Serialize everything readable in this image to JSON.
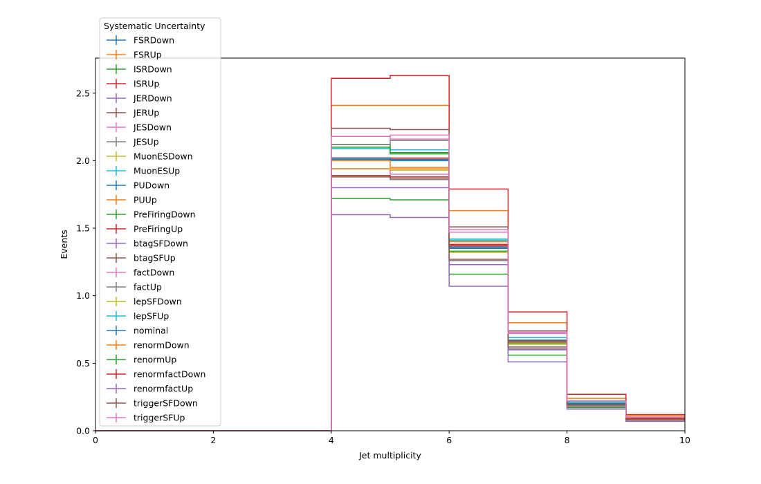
{
  "chart_data": {
    "type": "line",
    "drawstyle": "step-post",
    "xlabel": "Jet multiplicity",
    "ylabel": "Events",
    "xlim": [
      0,
      10
    ],
    "ylim": [
      0,
      2.76
    ],
    "xticks": [
      0,
      2,
      4,
      6,
      8,
      10
    ],
    "xtick_labels": [
      "0",
      "2",
      "4",
      "6",
      "8",
      "10"
    ],
    "yticks": [
      0.0,
      0.5,
      1.0,
      1.5,
      2.0,
      2.5
    ],
    "ytick_labels": [
      "0.0",
      "0.5",
      "1.0",
      "1.5",
      "2.0",
      "2.5"
    ],
    "grid": false,
    "legend": {
      "title": "Systematic Uncertainty",
      "placement": "top-left, outside above axes"
    },
    "bin_edges": [
      0,
      1,
      2,
      3,
      4,
      5,
      6,
      7,
      8,
      9,
      10
    ],
    "series": [
      {
        "name": "FSRDown",
        "color": "#1f77b4",
        "values": [
          0,
          0,
          0,
          0,
          2.02,
          2.01,
          1.36,
          0.67,
          0.2,
          0.09
        ]
      },
      {
        "name": "FSRUp",
        "color": "#ff7f0e",
        "values": [
          0,
          0,
          0,
          0,
          2.41,
          2.41,
          1.63,
          0.8,
          0.24,
          0.11
        ]
      },
      {
        "name": "ISRDown",
        "color": "#2ca02c",
        "values": [
          0,
          0,
          0,
          0,
          2.12,
          2.06,
          1.41,
          0.69,
          0.21,
          0.09
        ]
      },
      {
        "name": "ISRUp",
        "color": "#d62728",
        "values": [
          0,
          0,
          0,
          0,
          2.61,
          2.63,
          1.79,
          0.88,
          0.27,
          0.12
        ]
      },
      {
        "name": "JERDown",
        "color": "#9467bd",
        "values": [
          0,
          0,
          0,
          0,
          2.02,
          2.01,
          1.37,
          0.67,
          0.2,
          0.09
        ]
      },
      {
        "name": "JERUp",
        "color": "#8c564b",
        "values": [
          0,
          0,
          0,
          0,
          2.02,
          2.01,
          1.36,
          0.67,
          0.2,
          0.09
        ]
      },
      {
        "name": "JESDown",
        "color": "#e377c2",
        "values": [
          0,
          0,
          0,
          0,
          1.94,
          1.9,
          1.26,
          0.6,
          0.19,
          0.08
        ]
      },
      {
        "name": "JESUp",
        "color": "#7f7f7f",
        "values": [
          0,
          0,
          0,
          0,
          2.12,
          2.15,
          1.42,
          0.73,
          0.22,
          0.1
        ]
      },
      {
        "name": "MuonESDown",
        "color": "#bcbd22",
        "values": [
          0,
          0,
          0,
          0,
          2.01,
          2.01,
          1.35,
          0.66,
          0.2,
          0.09
        ]
      },
      {
        "name": "MuonESUp",
        "color": "#17becf",
        "values": [
          0,
          0,
          0,
          0,
          2.09,
          2.08,
          1.42,
          0.69,
          0.21,
          0.1
        ]
      },
      {
        "name": "PUDown",
        "color": "#1f77b4",
        "values": [
          0,
          0,
          0,
          0,
          2.01,
          2.0,
          1.35,
          0.66,
          0.2,
          0.09
        ]
      },
      {
        "name": "PUUp",
        "color": "#ff7f0e",
        "values": [
          0,
          0,
          0,
          0,
          2.0,
          1.95,
          1.4,
          0.66,
          0.2,
          0.09
        ]
      },
      {
        "name": "PreFiringDown",
        "color": "#2ca02c",
        "values": [
          0,
          0,
          0,
          0,
          1.72,
          1.71,
          1.16,
          0.56,
          0.17,
          0.08
        ]
      },
      {
        "name": "PreFiringUp",
        "color": "#d62728",
        "values": [
          0,
          0,
          0,
          0,
          2.02,
          2.02,
          1.37,
          0.67,
          0.2,
          0.09
        ]
      },
      {
        "name": "btagSFDown",
        "color": "#9467bd",
        "values": [
          0,
          0,
          0,
          0,
          1.8,
          1.8,
          1.23,
          0.6,
          0.18,
          0.08
        ]
      },
      {
        "name": "btagSFUp",
        "color": "#8c564b",
        "values": [
          0,
          0,
          0,
          0,
          2.24,
          2.23,
          1.51,
          0.74,
          0.22,
          0.1
        ]
      },
      {
        "name": "factDown",
        "color": "#e377c2",
        "values": [
          0,
          0,
          0,
          0,
          2.18,
          2.19,
          1.49,
          0.73,
          0.22,
          0.1
        ]
      },
      {
        "name": "factUp",
        "color": "#7f7f7f",
        "values": [
          0,
          0,
          0,
          0,
          1.89,
          1.86,
          1.26,
          0.61,
          0.18,
          0.08
        ]
      },
      {
        "name": "lepSFDown",
        "color": "#bcbd22",
        "values": [
          0,
          0,
          0,
          0,
          1.94,
          1.93,
          1.32,
          0.64,
          0.19,
          0.09
        ]
      },
      {
        "name": "lepSFUp",
        "color": "#17becf",
        "values": [
          0,
          0,
          0,
          0,
          2.1,
          2.08,
          1.41,
          0.69,
          0.21,
          0.1
        ]
      },
      {
        "name": "nominal",
        "color": "#1f77b4",
        "values": [
          0,
          0,
          0,
          0,
          2.02,
          2.01,
          1.36,
          0.67,
          0.2,
          0.09
        ]
      },
      {
        "name": "renormDown",
        "color": "#ff7f0e",
        "values": [
          0,
          0,
          0,
          0,
          1.94,
          1.94,
          1.38,
          0.65,
          0.19,
          0.09
        ]
      },
      {
        "name": "renormUp",
        "color": "#2ca02c",
        "values": [
          0,
          0,
          0,
          0,
          2.1,
          2.05,
          1.33,
          0.65,
          0.19,
          0.09
        ]
      },
      {
        "name": "renormfactDown",
        "color": "#d62728",
        "values": [
          0,
          0,
          0,
          0,
          1.89,
          1.88,
          1.38,
          0.66,
          0.19,
          0.09
        ]
      },
      {
        "name": "renormfactUp",
        "color": "#9467bd",
        "values": [
          0,
          0,
          0,
          0,
          1.6,
          1.58,
          1.07,
          0.51,
          0.16,
          0.07
        ]
      },
      {
        "name": "triggerSFDown",
        "color": "#8c564b",
        "values": [
          0,
          0,
          0,
          0,
          1.88,
          1.87,
          1.27,
          0.62,
          0.19,
          0.08
        ]
      },
      {
        "name": "triggerSFUp",
        "color": "#e377c2",
        "values": [
          0,
          0,
          0,
          0,
          2.18,
          2.16,
          1.47,
          0.72,
          0.22,
          0.1
        ]
      }
    ]
  }
}
